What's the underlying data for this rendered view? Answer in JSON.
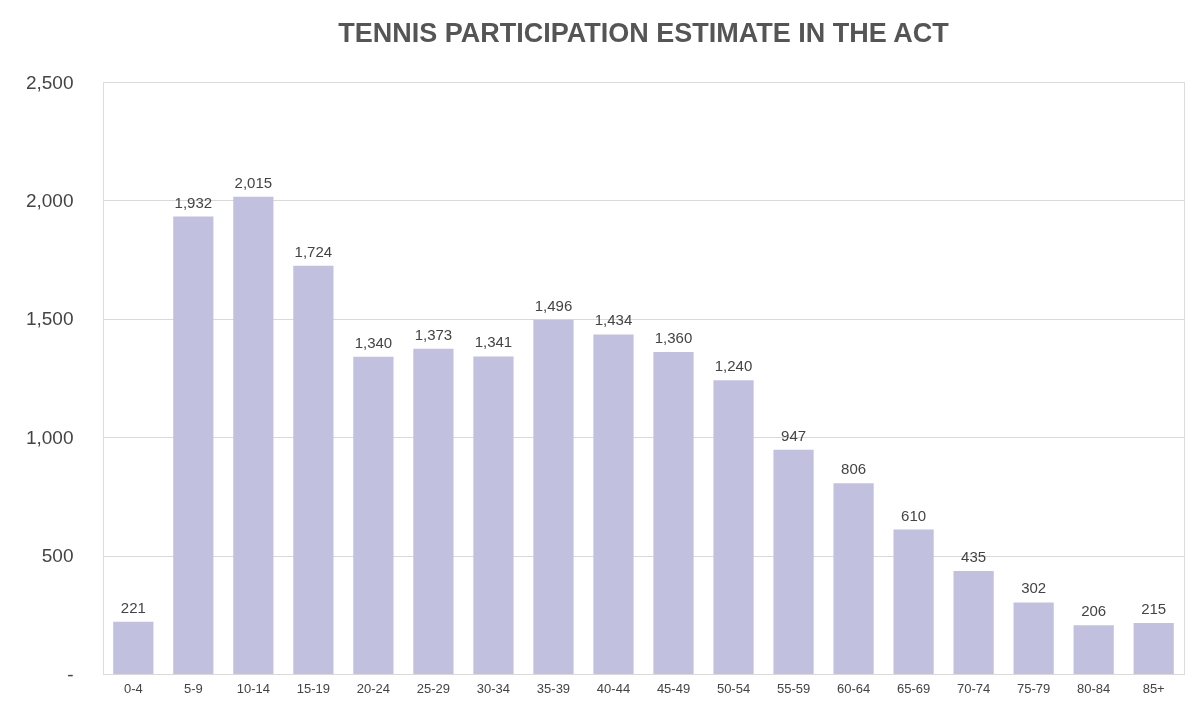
{
  "chart_data": {
    "type": "bar",
    "title": "TENNIS PARTICIPATION ESTIMATE IN THE ACT",
    "categories": [
      "0-4",
      "5-9",
      "10-14",
      "15-19",
      "20-24",
      "25-29",
      "30-34",
      "35-39",
      "40-44",
      "45-49",
      "50-54",
      "55-59",
      "60-64",
      "65-69",
      "70-74",
      "75-79",
      "80-84",
      "85+"
    ],
    "values": [
      221,
      1932,
      2015,
      1724,
      1340,
      1373,
      1341,
      1496,
      1434,
      1360,
      1240,
      947,
      806,
      610,
      435,
      302,
      206,
      215
    ],
    "color": "#c1c0de",
    "ylim": [
      0,
      2500
    ],
    "yticks": [
      {
        "value": 0,
        "label": "-"
      },
      {
        "value": 500,
        "label": "500"
      },
      {
        "value": 1000,
        "label": "1,000"
      },
      {
        "value": 1500,
        "label": "1,500"
      },
      {
        "value": 2000,
        "label": "2,000"
      },
      {
        "value": 2500,
        "label": "2,500"
      }
    ],
    "grid": "y",
    "value_labels": [
      "221",
      "1,932",
      "2,015",
      "1,724",
      "1,340",
      "1,373",
      "1,341",
      "1,496",
      "1,434",
      "1,360",
      "1,240",
      "947",
      "806",
      "610",
      "435",
      "302",
      "206",
      "215"
    ]
  }
}
